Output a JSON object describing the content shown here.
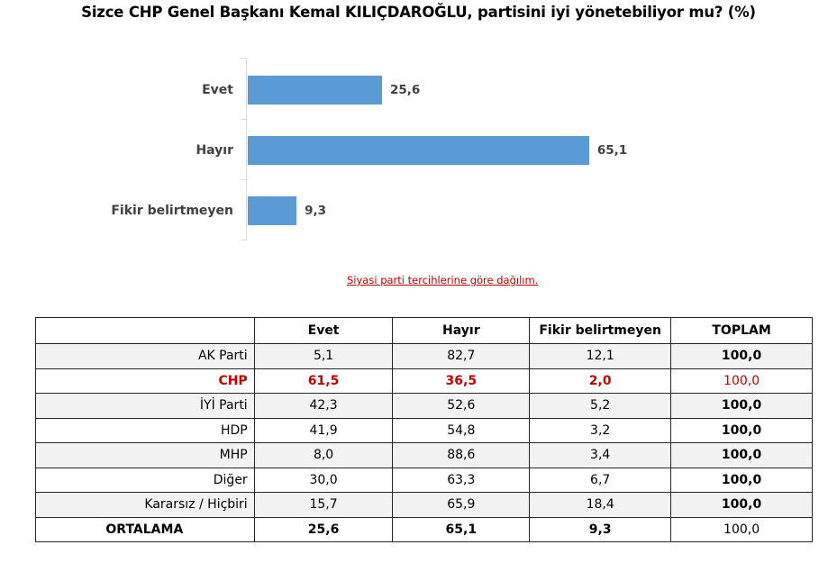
{
  "title": "Sizce CHP Genel Başkanı Kemal KILIÇDAROĞLU, partisini iyi yönetebiliyor mu? (%)",
  "subtitle_link": "Siyasi parti tercihlerine göre dağılım.",
  "colors": {
    "bar": "#5b9bd5",
    "highlight": "#c00000",
    "row_shade": "#f2f2f2"
  },
  "chart_data": [
    {
      "type": "bar",
      "orientation": "horizontal",
      "title": "Sizce CHP Genel Başkanı Kemal KILIÇDAROĞLU, partisini iyi yönetebiliyor mu? (%)",
      "categories": [
        "Evet",
        "Hayır",
        "Fikir belirtmeyen"
      ],
      "values": [
        25.6,
        65.1,
        9.3
      ],
      "value_labels": [
        "25,6",
        "65,1",
        "9,3"
      ],
      "xlabel": "",
      "ylabel": "",
      "grid": false,
      "legend": null
    },
    {
      "type": "table",
      "title": "Siyasi parti tercihlerine göre dağılım.",
      "columns": [
        "",
        "Evet",
        "Hayır",
        "Fikir belirtmeyen",
        "TOPLAM"
      ],
      "rows": [
        {
          "name": "AK Parti",
          "values": [
            5.1,
            82.7,
            12.1,
            100.0
          ]
        },
        {
          "name": "CHP",
          "values": [
            61.5,
            36.5,
            2.0,
            100.0
          ]
        },
        {
          "name": "İYİ Parti",
          "values": [
            42.3,
            52.6,
            5.2,
            100.0
          ]
        },
        {
          "name": "HDP",
          "values": [
            41.9,
            54.8,
            3.2,
            100.0
          ]
        },
        {
          "name": "MHP",
          "values": [
            8.0,
            88.6,
            3.4,
            100.0
          ]
        },
        {
          "name": "Diğer",
          "values": [
            30.0,
            63.3,
            6.7,
            100.0
          ]
        },
        {
          "name": "Kararsız / Hiçbiri",
          "values": [
            15.7,
            65.9,
            18.4,
            100.0
          ]
        },
        {
          "name": "ORTALAMA",
          "values": [
            25.6,
            65.1,
            9.3,
            100.0
          ]
        }
      ]
    }
  ],
  "bars": [
    {
      "label": "Evet",
      "value": 25.6,
      "display": "25,6"
    },
    {
      "label": "Hayır",
      "value": 65.1,
      "display": "65,1"
    },
    {
      "label": "Fikir belirtmeyen",
      "value": 9.3,
      "display": "9,3"
    }
  ],
  "table": {
    "headers": [
      "",
      "Evet",
      "Hayır",
      "Fikir belirtmeyen",
      "TOPLAM"
    ],
    "rows": [
      {
        "name": "AK Parti",
        "evet": "5,1",
        "hayir": "82,7",
        "fikir": "12,1",
        "toplam": "100,0"
      },
      {
        "name": "CHP",
        "evet": "61,5",
        "hayir": "36,5",
        "fikir": "2,0",
        "toplam": "100,0"
      },
      {
        "name": "İYİ Parti",
        "evet": "42,3",
        "hayir": "52,6",
        "fikir": "5,2",
        "toplam": "100,0"
      },
      {
        "name": "HDP",
        "evet": "41,9",
        "hayir": "54,8",
        "fikir": "3,2",
        "toplam": "100,0"
      },
      {
        "name": "MHP",
        "evet": "8,0",
        "hayir": "88,6",
        "fikir": "3,4",
        "toplam": "100,0"
      },
      {
        "name": "Diğer",
        "evet": "30,0",
        "hayir": "63,3",
        "fikir": "6,7",
        "toplam": "100,0"
      },
      {
        "name": "Kararsız / Hiçbiri",
        "evet": "15,7",
        "hayir": "65,9",
        "fikir": "18,4",
        "toplam": "100,0"
      },
      {
        "name": "ORTALAMA",
        "evet": "25,6",
        "hayir": "65,1",
        "fikir": "9,3",
        "toplam": "100,0"
      }
    ]
  }
}
